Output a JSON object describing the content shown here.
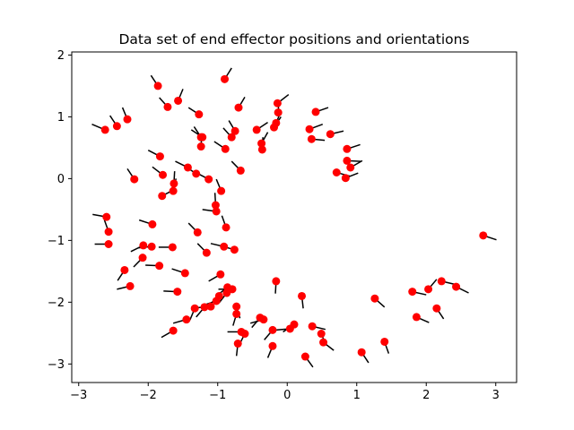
{
  "chart_data": {
    "type": "scatter",
    "title": "Data set of end effector positions and orientations",
    "xlabel": "",
    "ylabel": "",
    "xlim": [
      -3.1,
      3.3
    ],
    "ylim": [
      -3.3,
      2.05
    ],
    "xticks": [
      -3,
      -2,
      -1,
      0,
      1,
      2,
      3
    ],
    "yticks": [
      -3,
      -2,
      -1,
      0,
      1,
      2
    ],
    "grid": false,
    "marker_color": "#ff0000",
    "segment_color": "#000000",
    "points": [
      {
        "x": -0.9,
        "y": 1.61,
        "dx": 0.1,
        "dy": 0.18
      },
      {
        "x": -1.86,
        "y": 1.5,
        "dx": -0.1,
        "dy": 0.17
      },
      {
        "x": -1.72,
        "y": 1.16,
        "dx": -0.12,
        "dy": 0.15
      },
      {
        "x": -1.57,
        "y": 1.26,
        "dx": 0.07,
        "dy": 0.19
      },
      {
        "x": -0.7,
        "y": 1.15,
        "dx": 0.09,
        "dy": 0.17
      },
      {
        "x": -1.27,
        "y": 1.04,
        "dx": -0.15,
        "dy": 0.11
      },
      {
        "x": -0.14,
        "y": 1.22,
        "dx": 0.16,
        "dy": 0.14
      },
      {
        "x": -0.13,
        "y": 1.07,
        "dx": 0.01,
        "dy": 0.2
      },
      {
        "x": 0.41,
        "y": 1.08,
        "dx": 0.18,
        "dy": 0.07
      },
      {
        "x": -2.3,
        "y": 0.96,
        "dx": -0.07,
        "dy": 0.19
      },
      {
        "x": -2.45,
        "y": 0.85,
        "dx": -0.1,
        "dy": 0.17
      },
      {
        "x": -2.62,
        "y": 0.79,
        "dx": -0.19,
        "dy": 0.09
      },
      {
        "x": -0.16,
        "y": 0.9,
        "dx": 0.07,
        "dy": 0.19
      },
      {
        "x": -0.19,
        "y": 0.83,
        "dx": 0.1,
        "dy": 0.17
      },
      {
        "x": -0.44,
        "y": 0.79,
        "dx": 0.16,
        "dy": 0.12
      },
      {
        "x": 0.32,
        "y": 0.8,
        "dx": 0.19,
        "dy": 0.08
      },
      {
        "x": 0.62,
        "y": 0.72,
        "dx": 0.19,
        "dy": 0.05
      },
      {
        "x": -0.75,
        "y": 0.77,
        "dx": -0.09,
        "dy": 0.17
      },
      {
        "x": -0.8,
        "y": 0.67,
        "dx": -0.12,
        "dy": 0.15
      },
      {
        "x": -1.22,
        "y": 0.67,
        "dx": -0.16,
        "dy": 0.12
      },
      {
        "x": -1.24,
        "y": 0.67,
        "dx": -0.1,
        "dy": 0.17
      },
      {
        "x": -0.37,
        "y": 0.57,
        "dx": 0.09,
        "dy": 0.18
      },
      {
        "x": -0.36,
        "y": 0.47,
        "dx": 0.01,
        "dy": 0.2
      },
      {
        "x": 0.35,
        "y": 0.64,
        "dx": 0.19,
        "dy": -0.02
      },
      {
        "x": 0.86,
        "y": 0.48,
        "dx": 0.19,
        "dy": 0.07
      },
      {
        "x": -0.89,
        "y": 0.48,
        "dx": -0.16,
        "dy": 0.12
      },
      {
        "x": -1.24,
        "y": 0.52,
        "dx": 0.01,
        "dy": 0.2
      },
      {
        "x": -1.83,
        "y": 0.36,
        "dx": -0.17,
        "dy": 0.1
      },
      {
        "x": 0.86,
        "y": 0.29,
        "dx": 0.2,
        "dy": -0.01
      },
      {
        "x": 0.91,
        "y": 0.18,
        "dx": 0.17,
        "dy": 0.11
      },
      {
        "x": 0.71,
        "y": 0.1,
        "dx": 0.19,
        "dy": -0.06
      },
      {
        "x": 0.84,
        "y": 0.01,
        "dx": 0.18,
        "dy": 0.08
      },
      {
        "x": -0.67,
        "y": 0.13,
        "dx": -0.13,
        "dy": 0.15
      },
      {
        "x": -1.43,
        "y": 0.18,
        "dx": -0.18,
        "dy": 0.1
      },
      {
        "x": -1.31,
        "y": 0.08,
        "dx": -0.16,
        "dy": 0.12
      },
      {
        "x": -1.79,
        "y": 0.06,
        "dx": -0.15,
        "dy": 0.13
      },
      {
        "x": -1.13,
        "y": -0.01,
        "dx": -0.17,
        "dy": 0.1
      },
      {
        "x": -2.2,
        "y": -0.01,
        "dx": -0.1,
        "dy": 0.17
      },
      {
        "x": -1.63,
        "y": -0.08,
        "dx": 0.01,
        "dy": 0.2
      },
      {
        "x": -0.95,
        "y": -0.2,
        "dx": -0.07,
        "dy": 0.19
      },
      {
        "x": -1.64,
        "y": -0.2,
        "dx": 0.04,
        "dy": 0.2
      },
      {
        "x": -1.8,
        "y": -0.28,
        "dx": 0.17,
        "dy": 0.1
      },
      {
        "x": -1.03,
        "y": -0.43,
        "dx": -0.01,
        "dy": 0.2
      },
      {
        "x": -1.02,
        "y": -0.53,
        "dx": -0.2,
        "dy": 0.03
      },
      {
        "x": -2.6,
        "y": -0.62,
        "dx": -0.2,
        "dy": 0.04
      },
      {
        "x": -1.94,
        "y": -0.74,
        "dx": -0.19,
        "dy": 0.07
      },
      {
        "x": -0.88,
        "y": -0.79,
        "dx": -0.06,
        "dy": 0.19
      },
      {
        "x": -1.29,
        "y": -0.87,
        "dx": -0.13,
        "dy": 0.15
      },
      {
        "x": -2.57,
        "y": -0.86,
        "dx": -0.06,
        "dy": 0.19
      },
      {
        "x": -2.57,
        "y": -1.06,
        "dx": -0.2,
        "dy": 0.0
      },
      {
        "x": -2.07,
        "y": -1.08,
        "dx": -0.18,
        "dy": -0.1
      },
      {
        "x": -1.95,
        "y": -1.1,
        "dx": -0.19,
        "dy": -0.02
      },
      {
        "x": -0.91,
        "y": -1.1,
        "dx": -0.19,
        "dy": 0.05
      },
      {
        "x": -1.65,
        "y": -1.11,
        "dx": -0.2,
        "dy": 0.0
      },
      {
        "x": -0.76,
        "y": -1.15,
        "dx": -0.19,
        "dy": 0.06
      },
      {
        "x": -1.16,
        "y": -1.2,
        "dx": -0.13,
        "dy": 0.15
      },
      {
        "x": -2.08,
        "y": -1.28,
        "dx": -0.13,
        "dy": -0.15
      },
      {
        "x": -1.84,
        "y": -1.41,
        "dx": -0.2,
        "dy": 0.01
      },
      {
        "x": -2.34,
        "y": -1.48,
        "dx": -0.1,
        "dy": -0.17
      },
      {
        "x": -1.47,
        "y": -1.53,
        "dx": -0.19,
        "dy": 0.07
      },
      {
        "x": -0.96,
        "y": -1.55,
        "dx": -0.17,
        "dy": -0.11
      },
      {
        "x": -2.26,
        "y": -1.74,
        "dx": -0.19,
        "dy": -0.05
      },
      {
        "x": -0.86,
        "y": -1.76,
        "dx": -0.15,
        "dy": -0.13
      },
      {
        "x": -0.79,
        "y": -1.79,
        "dx": -0.2,
        "dy": 0.0
      },
      {
        "x": -0.87,
        "y": -1.85,
        "dx": -0.11,
        "dy": -0.16
      },
      {
        "x": -1.58,
        "y": -1.83,
        "dx": -0.2,
        "dy": 0.01
      },
      {
        "x": -0.98,
        "y": -1.9,
        "dx": -0.14,
        "dy": -0.14
      },
      {
        "x": -0.16,
        "y": -1.66,
        "dx": -0.01,
        "dy": -0.2
      },
      {
        "x": 0.21,
        "y": -1.9,
        "dx": 0.02,
        "dy": -0.2
      },
      {
        "x": -1.02,
        "y": -1.98,
        "dx": -0.19,
        "dy": -0.07
      },
      {
        "x": -1.1,
        "y": -2.07,
        "dx": -0.2,
        "dy": -0.02
      },
      {
        "x": -1.19,
        "y": -2.08,
        "dx": -0.12,
        "dy": -0.16
      },
      {
        "x": -1.33,
        "y": -2.1,
        "dx": -0.07,
        "dy": -0.19
      },
      {
        "x": 1.26,
        "y": -1.94,
        "dx": 0.14,
        "dy": -0.14
      },
      {
        "x": 1.8,
        "y": -1.83,
        "dx": 0.2,
        "dy": -0.05
      },
      {
        "x": 2.03,
        "y": -1.79,
        "dx": 0.12,
        "dy": 0.16
      },
      {
        "x": 2.22,
        "y": -1.66,
        "dx": 0.19,
        "dy": -0.05
      },
      {
        "x": 2.43,
        "y": -1.75,
        "dx": 0.18,
        "dy": -0.1
      },
      {
        "x": 2.15,
        "y": -2.1,
        "dx": 0.1,
        "dy": -0.17
      },
      {
        "x": 1.86,
        "y": -2.24,
        "dx": 0.18,
        "dy": -0.09
      },
      {
        "x": 2.82,
        "y": -0.92,
        "dx": 0.19,
        "dy": -0.07
      },
      {
        "x": -0.73,
        "y": -2.07,
        "dx": 0.05,
        "dy": -0.19
      },
      {
        "x": -0.73,
        "y": -2.19,
        "dx": -0.05,
        "dy": -0.19
      },
      {
        "x": -1.45,
        "y": -2.28,
        "dx": -0.19,
        "dy": -0.06
      },
      {
        "x": -0.39,
        "y": -2.25,
        "dx": -0.12,
        "dy": -0.16
      },
      {
        "x": -0.34,
        "y": -2.28,
        "dx": -0.19,
        "dy": -0.06
      },
      {
        "x": 0.1,
        "y": -2.36,
        "dx": -0.16,
        "dy": -0.12
      },
      {
        "x": 0.04,
        "y": -2.43,
        "dx": -0.2,
        "dy": -0.02
      },
      {
        "x": -0.21,
        "y": -2.45,
        "dx": -0.12,
        "dy": -0.16
      },
      {
        "x": 0.36,
        "y": -2.39,
        "dx": 0.19,
        "dy": -0.05
      },
      {
        "x": -1.64,
        "y": -2.46,
        "dx": -0.17,
        "dy": -0.11
      },
      {
        "x": -0.66,
        "y": -2.48,
        "dx": -0.2,
        "dy": 0.0
      },
      {
        "x": -0.61,
        "y": -2.51,
        "dx": -0.08,
        "dy": -0.18
      },
      {
        "x": 0.49,
        "y": -2.51,
        "dx": 0.07,
        "dy": -0.19
      },
      {
        "x": 0.52,
        "y": -2.65,
        "dx": 0.15,
        "dy": -0.13
      },
      {
        "x": 1.4,
        "y": -2.64,
        "dx": 0.06,
        "dy": -0.19
      },
      {
        "x": -0.71,
        "y": -2.67,
        "dx": -0.02,
        "dy": -0.2
      },
      {
        "x": -0.21,
        "y": -2.71,
        "dx": -0.07,
        "dy": -0.19
      },
      {
        "x": 0.26,
        "y": -2.88,
        "dx": 0.11,
        "dy": -0.17
      },
      {
        "x": 1.07,
        "y": -2.81,
        "dx": 0.1,
        "dy": -0.17
      }
    ]
  }
}
